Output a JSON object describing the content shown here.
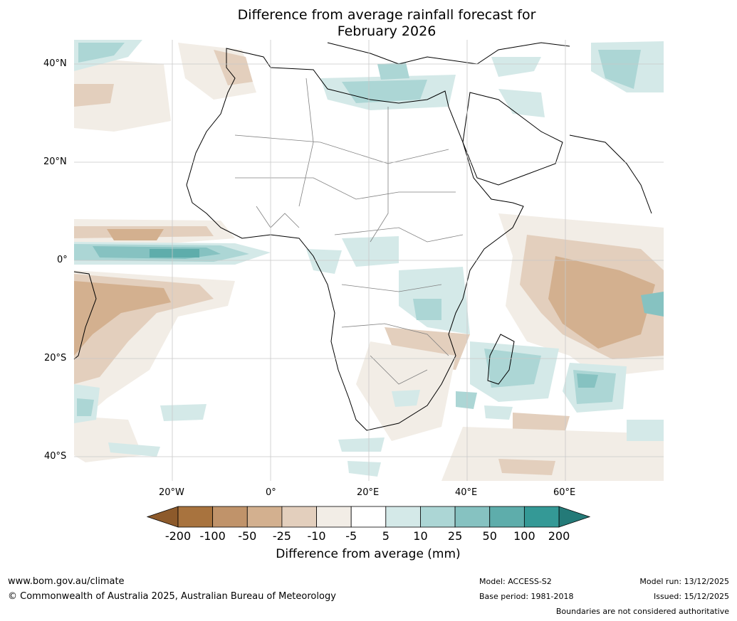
{
  "title": {
    "line1": "Difference from average rainfall forecast for",
    "line2": "February 2026"
  },
  "map": {
    "region": "Africa",
    "lat_ticks": [
      "40°N",
      "20°N",
      "0°",
      "20°S",
      "40°S"
    ],
    "lon_ticks": [
      "20°W",
      "0°",
      "20°E",
      "40°E",
      "60°E"
    ]
  },
  "colorbar": {
    "labels": [
      "-200",
      "-100",
      "-50",
      "-25",
      "-10",
      "-5",
      "5",
      "10",
      "25",
      "50",
      "100",
      "200"
    ],
    "colors": [
      "#a8733e",
      "#c0936a",
      "#d3b08f",
      "#e3cfbd",
      "#f2ede6",
      "#ffffff",
      "#d4e9e8",
      "#acd6d5",
      "#86c2c1",
      "#5eadab",
      "#349996"
    ],
    "under_color": "#8d5a2b",
    "over_color": "#247a78",
    "title": "Difference from average (mm)"
  },
  "footer": {
    "website": "www.bom.gov.au/climate",
    "copyright": "© Commonwealth of Australia 2025, Australian Bureau of Meteorology",
    "model": "Model: ACCESS-S2",
    "base_period": "Base period: 1981-2018",
    "model_run": "Model run: 13/12/2025",
    "issued": "Issued: 15/12/2025",
    "disclaimer": "Boundaries are not considered authoritative"
  }
}
